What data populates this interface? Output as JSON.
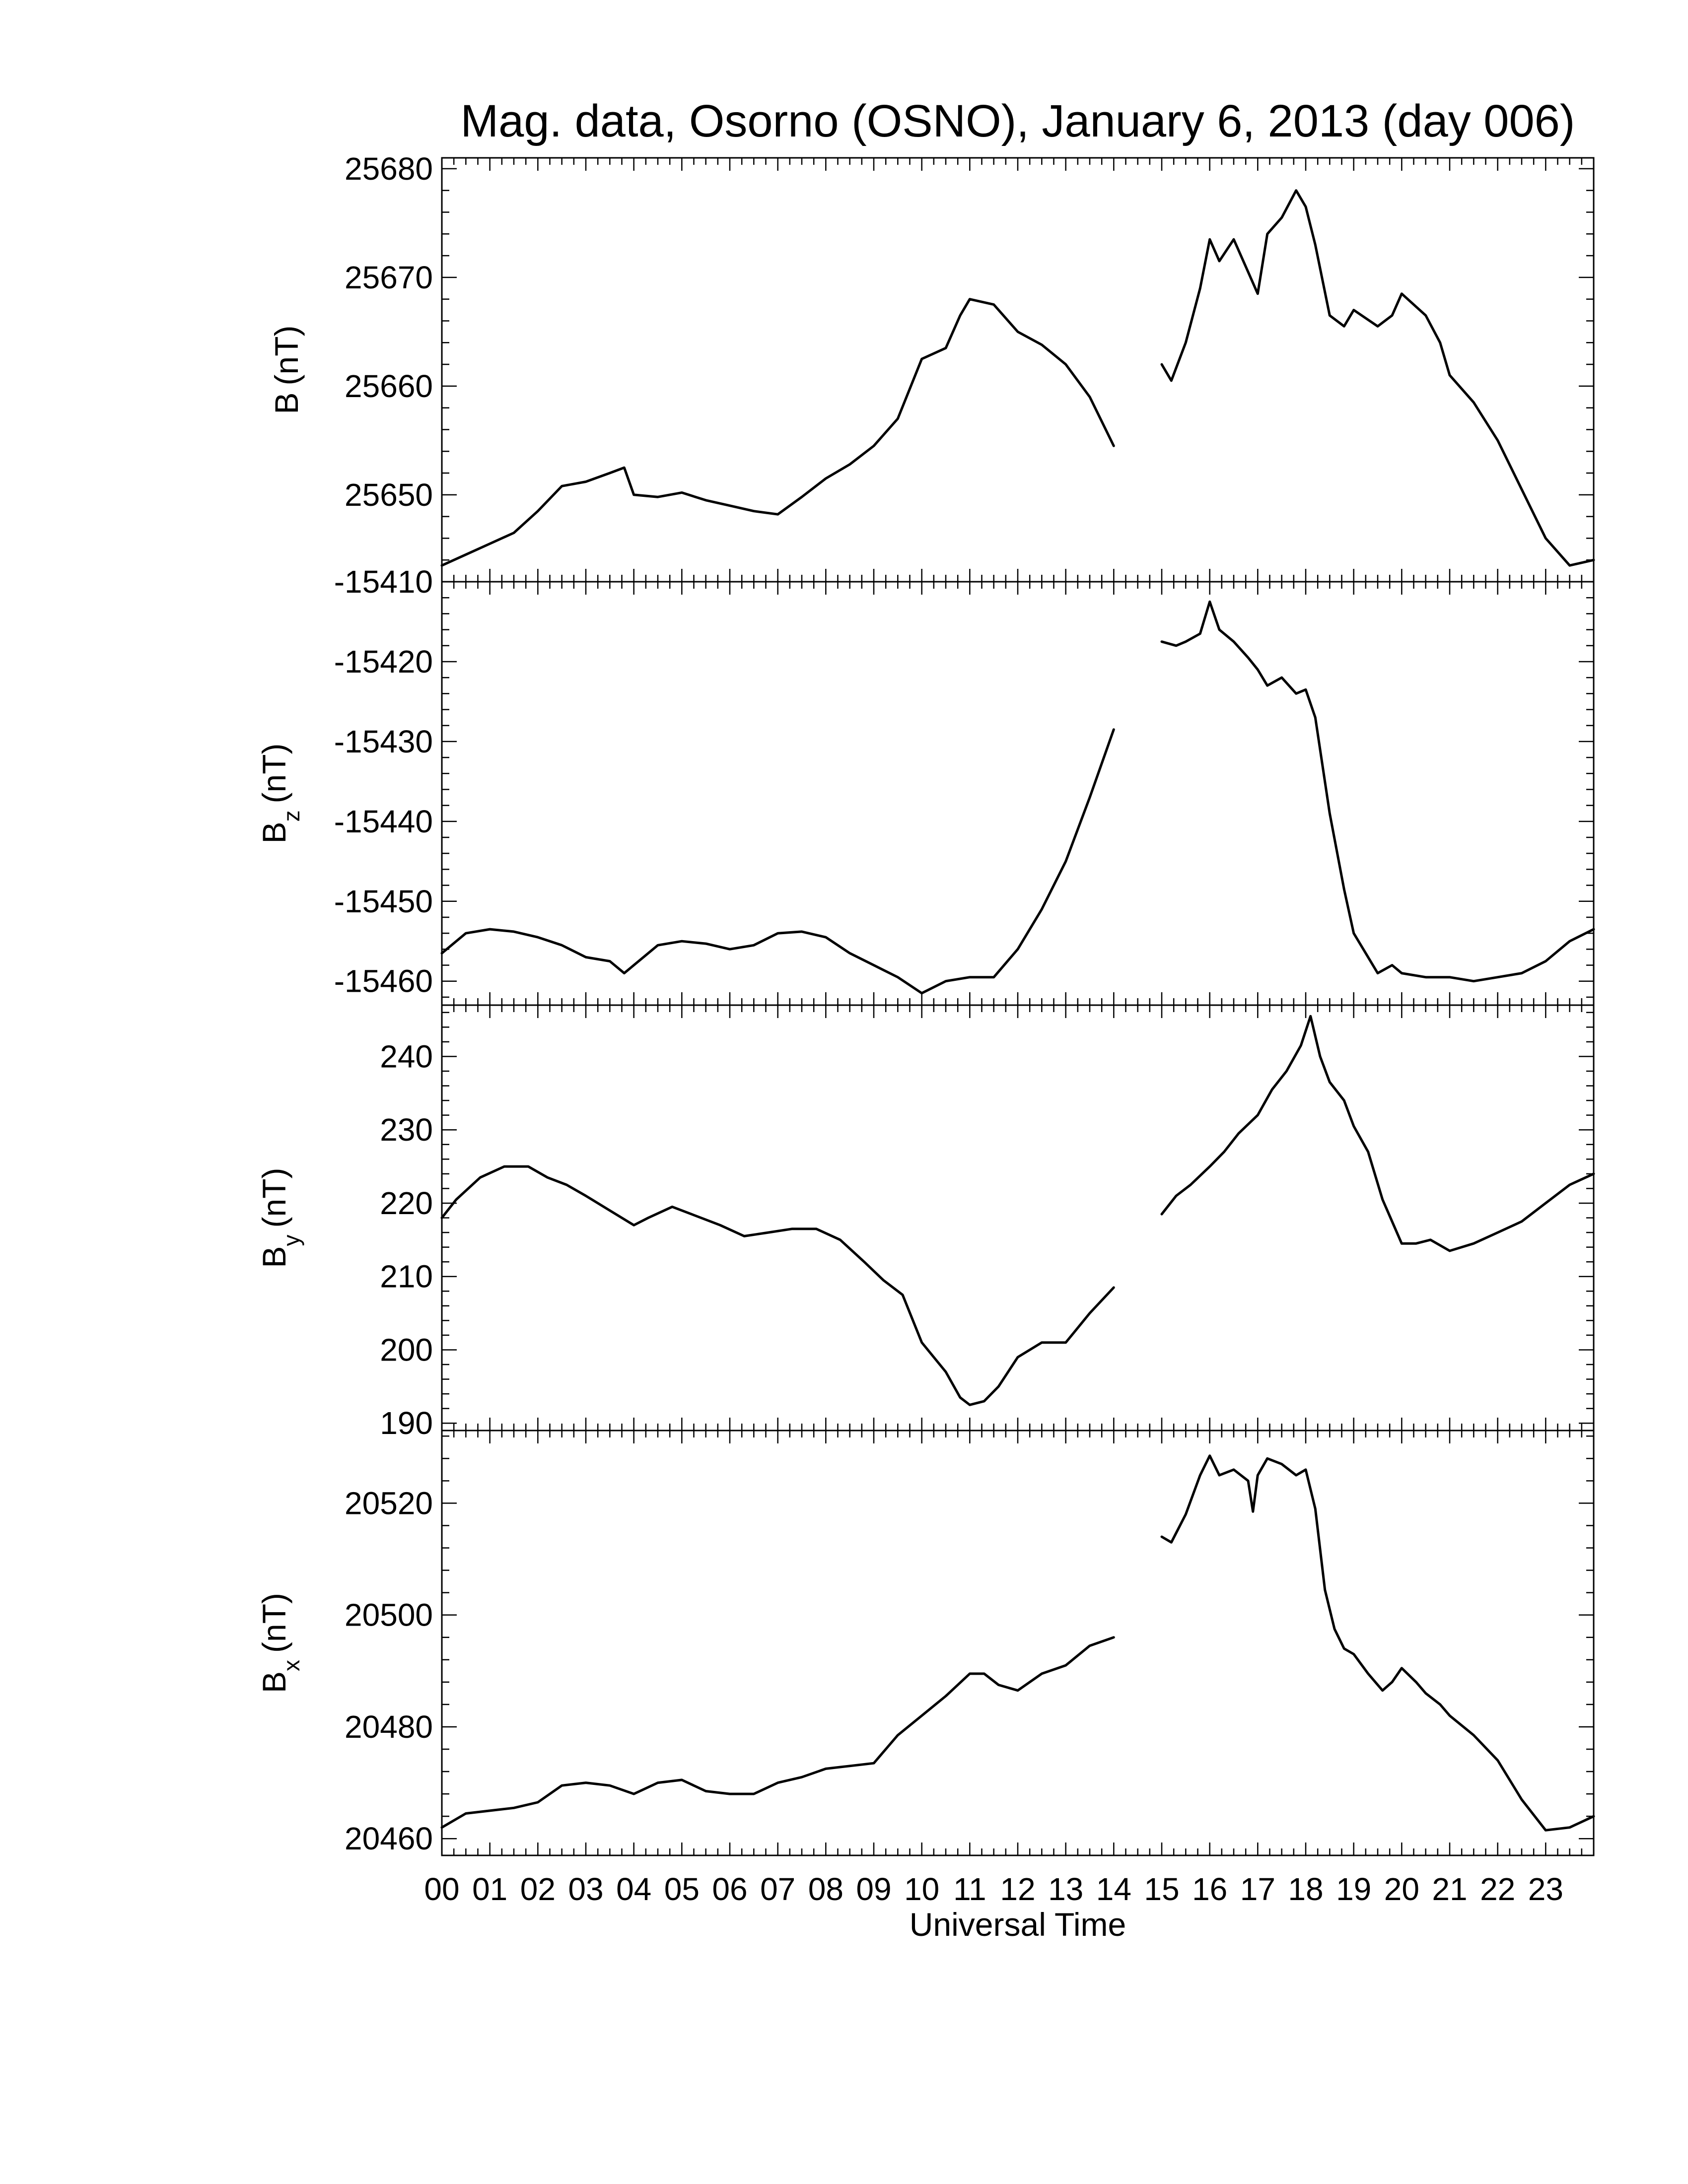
{
  "chart_data": {
    "type": "line",
    "title": "Mag. data, Osorno (OSNO), January 6, 2013 (day 006)",
    "xlabel": "Universal Time",
    "x_ticks": [
      "00",
      "01",
      "02",
      "03",
      "04",
      "05",
      "06",
      "07",
      "08",
      "09",
      "10",
      "11",
      "12",
      "13",
      "14",
      "15",
      "16",
      "17",
      "18",
      "19",
      "20",
      "21",
      "22",
      "23"
    ],
    "xlim": [
      0,
      24
    ],
    "data_gap_hours": [
      14.0,
      15.0
    ],
    "panels": [
      {
        "id": "B",
        "ylabel_main": "B",
        "ylabel_sub": "",
        "ylabel_unit": "(nT)",
        "ylim": [
          25642,
          25681
        ],
        "yticks": [
          25650,
          25660,
          25670,
          25680
        ],
        "yticklabels": [
          "25650",
          "25660",
          "25670",
          "25680"
        ],
        "segments": [
          {
            "x": [
              0.0,
              0.5,
              1.0,
              1.5,
              2.0,
              2.5,
              3.0,
              3.5,
              3.8,
              4.0,
              4.5,
              5.0,
              5.5,
              6.0,
              6.5,
              7.0,
              7.5,
              8.0,
              8.5,
              9.0,
              9.5,
              10.0,
              10.5,
              10.8,
              11.0,
              11.5,
              12.0,
              12.5,
              13.0,
              13.5,
              14.0
            ],
            "y": [
              25643.5,
              25644.5,
              25645.5,
              25646.5,
              25648.5,
              25650.8,
              25651.2,
              25652.0,
              25652.5,
              25650.0,
              25649.8,
              25650.2,
              25649.5,
              25649.0,
              25648.5,
              25648.2,
              25649.8,
              25651.5,
              25652.8,
              25654.5,
              25657.0,
              25662.5,
              25663.5,
              25666.5,
              25668.0,
              25667.5,
              25665.0,
              25663.8,
              25662.0,
              25659.0,
              25654.5
            ]
          },
          {
            "x": [
              15.0,
              15.2,
              15.5,
              15.8,
              16.0,
              16.2,
              16.5,
              16.8,
              17.0,
              17.2,
              17.5,
              17.8,
              18.0,
              18.2,
              18.5,
              18.8,
              19.0,
              19.5,
              19.8,
              20.0,
              20.5,
              20.8,
              21.0,
              21.5,
              22.0,
              22.5,
              23.0,
              23.5,
              24.0
            ],
            "y": [
              25662.0,
              25660.5,
              25664.0,
              25669.0,
              25673.5,
              25671.5,
              25673.5,
              25670.5,
              25668.5,
              25674.0,
              25675.5,
              25678.0,
              25676.5,
              25673.0,
              25666.5,
              25665.5,
              25667.0,
              25665.5,
              25666.5,
              25668.5,
              25666.5,
              25664.0,
              25661.0,
              25658.5,
              25655.0,
              25650.5,
              25646.0,
              25643.5,
              25644.0
            ]
          }
        ]
      },
      {
        "id": "Bz",
        "ylabel_main": "B",
        "ylabel_sub": "z",
        "ylabel_unit": "(nT)",
        "ylim": [
          -15463,
          -15410
        ],
        "yticks": [
          -15460,
          -15450,
          -15440,
          -15430,
          -15420,
          -15410
        ],
        "yticklabels": [
          "-15460",
          "-15450",
          "-15440",
          "-15430",
          "-15420",
          "-15410"
        ],
        "segments": [
          {
            "x": [
              0.0,
              0.5,
              1.0,
              1.5,
              2.0,
              2.5,
              3.0,
              3.5,
              3.8,
              4.2,
              4.5,
              5.0,
              5.5,
              6.0,
              6.5,
              7.0,
              7.5,
              8.0,
              8.5,
              9.0,
              9.5,
              10.0,
              10.5,
              11.0,
              11.5,
              12.0,
              12.5,
              13.0,
              13.5,
              14.0
            ],
            "y": [
              -15456.5,
              -15454.0,
              -15453.5,
              -15453.8,
              -15454.5,
              -15455.5,
              -15457.0,
              -15457.5,
              -15459.0,
              -15457.0,
              -15455.5,
              -15455.0,
              -15455.3,
              -15456.0,
              -15455.5,
              -15454.0,
              -15453.8,
              -15454.5,
              -15456.5,
              -15458.0,
              -15459.5,
              -15461.5,
              -15460.0,
              -15459.5,
              -15459.5,
              -15456.0,
              -15451.0,
              -15445.0,
              -15437.0,
              -15428.5
            ]
          },
          {
            "x": [
              15.0,
              15.3,
              15.5,
              15.8,
              16.0,
              16.2,
              16.5,
              16.8,
              17.0,
              17.2,
              17.5,
              17.8,
              18.0,
              18.2,
              18.5,
              18.8,
              19.0,
              19.3,
              19.5,
              19.8,
              20.0,
              20.5,
              21.0,
              21.5,
              22.0,
              22.5,
              23.0,
              23.5,
              24.0
            ],
            "y": [
              -15417.5,
              -15418.0,
              -15417.5,
              -15416.5,
              -15412.5,
              -15416.0,
              -15417.5,
              -15419.5,
              -15421.0,
              -15423.0,
              -15422.0,
              -15424.0,
              -15423.5,
              -15427.0,
              -15439.0,
              -15448.5,
              -15454.0,
              -15457.0,
              -15459.0,
              -15458.0,
              -15459.0,
              -15459.5,
              -15459.5,
              -15460.0,
              -15459.5,
              -15459.0,
              -15457.5,
              -15455.0,
              -15453.5
            ]
          }
        ]
      },
      {
        "id": "By",
        "ylabel_main": "B",
        "ylabel_sub": "y",
        "ylabel_unit": "(nT)",
        "ylim": [
          189,
          247
        ],
        "yticks": [
          190,
          200,
          210,
          220,
          230,
          240
        ],
        "yticklabels": [
          "190",
          "200",
          "210",
          "220",
          "230",
          "240"
        ],
        "segments": [
          {
            "x": [
              0.0,
              0.3,
              0.8,
              1.3,
              1.8,
              2.2,
              2.6,
              3.0,
              3.5,
              4.0,
              4.3,
              4.8,
              5.2,
              5.8,
              6.3,
              6.8,
              7.3,
              7.8,
              8.3,
              8.8,
              9.2,
              9.6,
              10.0,
              10.5,
              10.8,
              11.0,
              11.3,
              11.6,
              12.0,
              12.5,
              13.0,
              13.5,
              14.0
            ],
            "y": [
              218.0,
              220.5,
              223.5,
              225.0,
              225.0,
              223.5,
              222.5,
              221.0,
              219.0,
              217.0,
              218.0,
              219.5,
              218.5,
              217.0,
              215.5,
              216.0,
              216.5,
              216.5,
              215.0,
              212.0,
              209.5,
              207.5,
              201.0,
              197.0,
              193.5,
              192.5,
              193.0,
              195.0,
              199.0,
              201.0,
              201.0,
              205.0,
              208.5
            ]
          },
          {
            "x": [
              15.0,
              15.3,
              15.6,
              16.0,
              16.3,
              16.6,
              17.0,
              17.3,
              17.6,
              17.9,
              18.1,
              18.3,
              18.5,
              18.8,
              19.0,
              19.3,
              19.6,
              20.0,
              20.3,
              20.6,
              21.0,
              21.5,
              22.0,
              22.5,
              23.0,
              23.5,
              24.0
            ],
            "y": [
              218.5,
              221.0,
              222.5,
              225.0,
              227.0,
              229.5,
              232.0,
              235.5,
              238.0,
              241.5,
              245.5,
              240.0,
              236.5,
              234.0,
              230.5,
              227.0,
              220.5,
              214.5,
              214.5,
              215.0,
              213.5,
              214.5,
              216.0,
              217.5,
              220.0,
              222.5,
              224.0
            ]
          }
        ]
      },
      {
        "id": "Bx",
        "ylabel_main": "B",
        "ylabel_sub": "x",
        "ylabel_unit": "(nT)",
        "ylim": [
          20457,
          20533
        ],
        "yticks": [
          20460,
          20480,
          20500,
          20520
        ],
        "yticklabels": [
          "20460",
          "20480",
          "20500",
          "20520"
        ],
        "segments": [
          {
            "x": [
              0.0,
              0.5,
              1.0,
              1.5,
              2.0,
              2.5,
              3.0,
              3.5,
              4.0,
              4.5,
              5.0,
              5.5,
              6.0,
              6.5,
              7.0,
              7.5,
              8.0,
              8.5,
              9.0,
              9.5,
              10.0,
              10.5,
              11.0,
              11.3,
              11.6,
              12.0,
              12.5,
              13.0,
              13.5,
              14.0
            ],
            "y": [
              20462.0,
              20464.5,
              20465.0,
              20465.5,
              20466.5,
              20469.5,
              20470.0,
              20469.5,
              20468.0,
              20470.0,
              20470.5,
              20468.5,
              20468.0,
              20468.0,
              20470.0,
              20471.0,
              20472.5,
              20473.0,
              20473.5,
              20478.5,
              20482.0,
              20485.5,
              20489.5,
              20489.5,
              20487.5,
              20486.5,
              20489.5,
              20491.0,
              20494.5,
              20496.0
            ]
          },
          {
            "x": [
              15.0,
              15.2,
              15.5,
              15.8,
              16.0,
              16.2,
              16.5,
              16.8,
              16.9,
              17.0,
              17.2,
              17.5,
              17.8,
              18.0,
              18.2,
              18.4,
              18.6,
              18.8,
              19.0,
              19.3,
              19.6,
              19.8,
              20.0,
              20.3,
              20.5,
              20.8,
              21.0,
              21.5,
              22.0,
              22.5,
              23.0,
              23.5,
              24.0
            ],
            "y": [
              20514.0,
              20513.0,
              20518.0,
              20525.0,
              20528.5,
              20525.0,
              20526.0,
              20524.0,
              20518.5,
              20525.0,
              20528.0,
              20527.0,
              20525.0,
              20526.0,
              20519.0,
              20504.5,
              20497.5,
              20494.0,
              20493.0,
              20489.5,
              20486.5,
              20488.0,
              20490.5,
              20488.0,
              20486.0,
              20484.0,
              20482.0,
              20478.5,
              20474.0,
              20467.0,
              20461.5,
              20462.0,
              20464.0
            ]
          }
        ]
      }
    ]
  }
}
